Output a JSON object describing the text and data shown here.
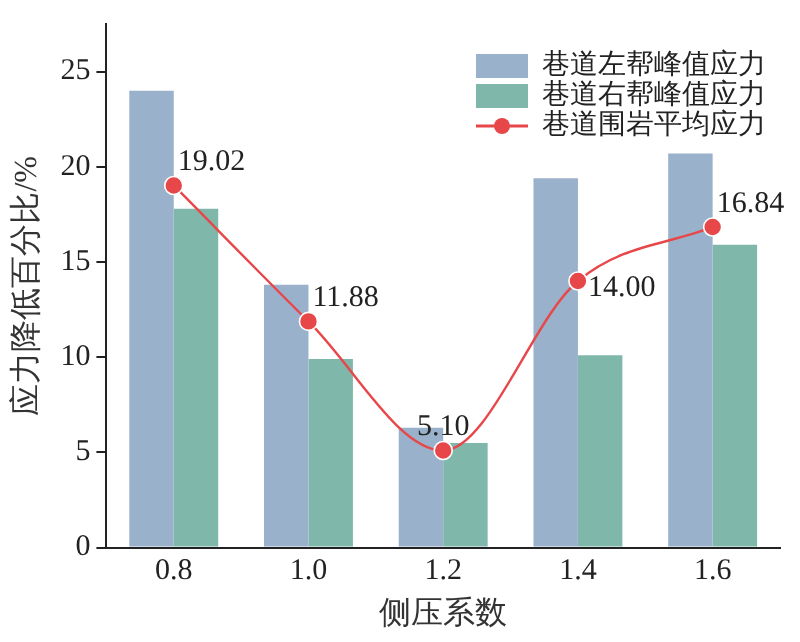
{
  "chart_data": {
    "type": "bar",
    "xlabel": "侧压系数",
    "ylabel": "应力降低百分比/%",
    "categories": [
      "0.8",
      "1.0",
      "1.2",
      "1.4",
      "1.6"
    ],
    "series": [
      {
        "name": "巷道左帮峰值应力",
        "color": "#9ab1cb",
        "values": [
          24.0,
          13.8,
          6.3,
          19.4,
          20.7
        ]
      },
      {
        "name": "巷道右帮峰值应力",
        "color": "#7fb8ab",
        "values": [
          17.8,
          9.9,
          5.5,
          10.1,
          15.9
        ]
      },
      {
        "name": "巷道围岩平均应力",
        "type": "line",
        "color": "#e8474a",
        "marker": "circle",
        "values": [
          19.02,
          11.88,
          5.1,
          14.0,
          16.84
        ],
        "value_labels": [
          "19.02",
          "11.88",
          "5.10",
          "14.00",
          "16.84"
        ]
      }
    ],
    "ylim": [
      0,
      27.5
    ],
    "yticks": [
      0,
      5,
      10,
      15,
      20,
      25
    ],
    "legend": "top right"
  }
}
